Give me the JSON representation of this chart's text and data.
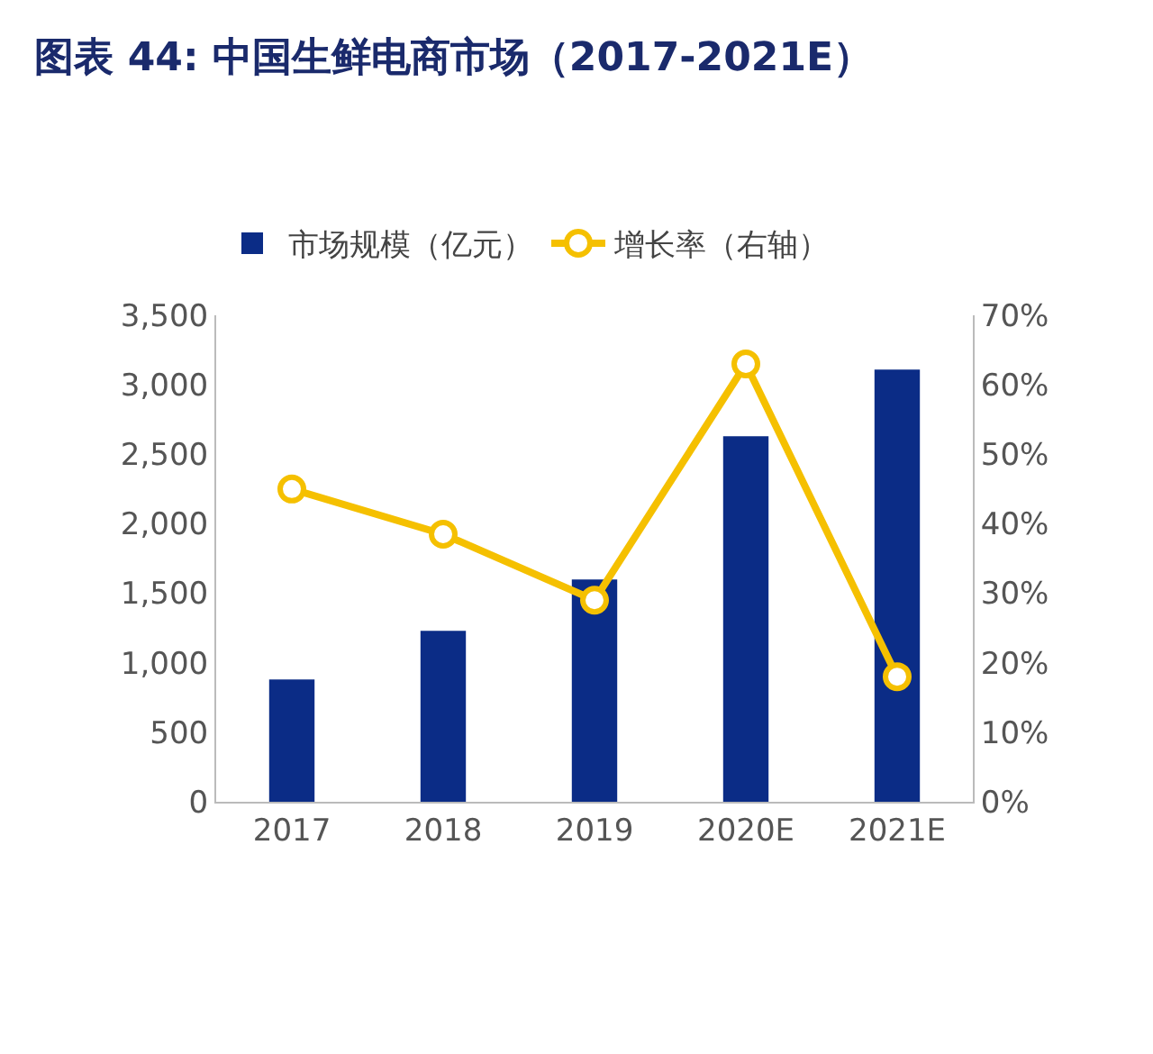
{
  "chart_data": {
    "type": "bar",
    "title": "图表 44: 中国生鲜电商市场（2017-2021E）",
    "categories": [
      "2017",
      "2018",
      "2019",
      "2020E",
      "2021E"
    ],
    "series": [
      {
        "name": "市场规模（亿元）",
        "color": "#0b2c86",
        "values": [
          880,
          1230,
          1600,
          2630,
          3110
        ]
      },
      {
        "name": "增长率（右轴）",
        "type": "line",
        "axis": "y2",
        "color": "#f5c000",
        "marker": "circle",
        "values": [
          45,
          38.5,
          29,
          63,
          18
        ]
      }
    ],
    "ylim": [
      0,
      3500
    ],
    "yticks": [
      0,
      {
        "value": 500,
        "label": "500"
      },
      {
        "value": 1000,
        "label": "1,000"
      },
      {
        "value": 1500,
        "label": "1,500"
      },
      {
        "value": 2000,
        "label": "2,000"
      },
      {
        "value": 2500,
        "label": "2,500"
      },
      {
        "value": 3000,
        "label": "3,000"
      },
      {
        "value": 3500,
        "label": "3,500"
      }
    ],
    "y2lim": [
      0,
      70
    ],
    "y2ticks": [
      {
        "value": 0,
        "label": "0%"
      },
      {
        "value": 10,
        "label": "10%"
      },
      {
        "value": 20,
        "label": "20%"
      },
      {
        "value": 30,
        "label": "30%"
      },
      {
        "value": 40,
        "label": "40%"
      },
      {
        "value": 50,
        "label": "50%"
      },
      {
        "value": 60,
        "label": "60%"
      },
      {
        "value": 70,
        "label": "70%"
      }
    ],
    "grid": false,
    "legend": "top"
  }
}
